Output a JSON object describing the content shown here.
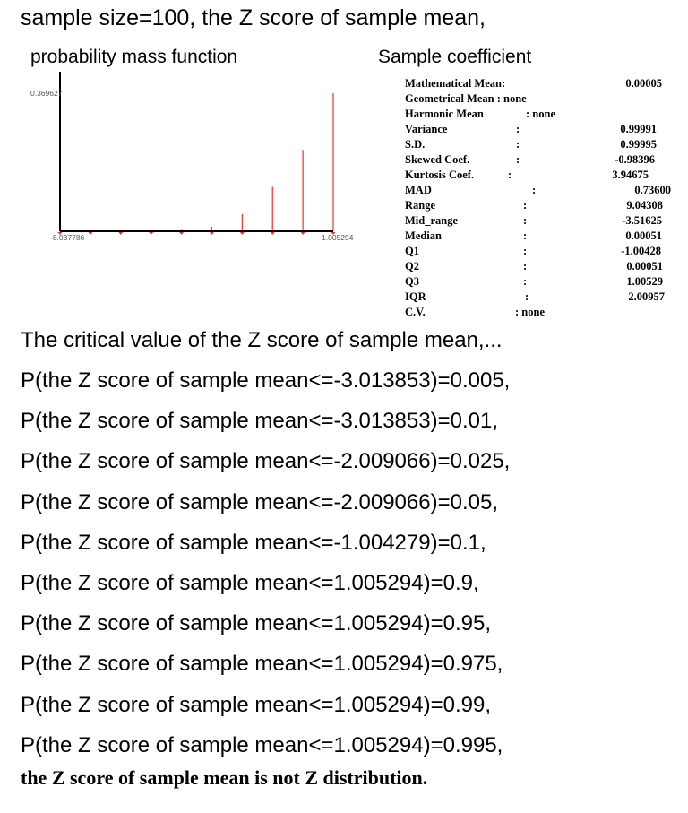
{
  "header": {
    "title": "sample size=100, the Z score of sample mean,",
    "pmf_title": "probability mass function",
    "coef_title": "Sample coefficient"
  },
  "chart_data": {
    "type": "bar",
    "title": "probability mass function",
    "y_tick_label": "0.369627",
    "x_min_label": "-8.037786",
    "x_max_label": "1.005294",
    "xlim": [
      -8.037786,
      1.005294
    ],
    "ylim": [
      0,
      0.369627
    ],
    "bar_color": "#e8332a",
    "axis_color": "#000000",
    "points": [
      {
        "x": -8.037786,
        "y": 0.0
      },
      {
        "x": -7.033,
        "y": 0.0
      },
      {
        "x": -6.028,
        "y": 0.0
      },
      {
        "x": -5.023,
        "y": 0.001
      },
      {
        "x": -4.018,
        "y": 0.004
      },
      {
        "x": -3.014,
        "y": 0.012
      },
      {
        "x": -2.009,
        "y": 0.046
      },
      {
        "x": -1.004,
        "y": 0.119
      },
      {
        "x": 0.0005,
        "y": 0.218
      },
      {
        "x": 1.005294,
        "y": 0.369627
      }
    ]
  },
  "stats": [
    {
      "label": "Mathematical Mean:",
      "colon": "",
      "value": "0.00005"
    },
    {
      "label": "Geometrical Mean : none",
      "colon": "",
      "value": ""
    },
    {
      "label": "Harmonic Mean",
      "colon": ": none",
      "value": ""
    },
    {
      "label": "Variance",
      "colon": ":",
      "value": "0.99991"
    },
    {
      "label": "S.D.",
      "colon": ":",
      "value": "0.99995"
    },
    {
      "label": "Skewed Coef.",
      "colon": ":",
      "value": "-0.98396"
    },
    {
      "label": "Kurtosis Coef.",
      "colon": ":",
      "value": "3.94675"
    },
    {
      "label": "MAD",
      "colon": ":",
      "value": "0.73600"
    },
    {
      "label": "Range",
      "colon": ":",
      "value": "9.04308"
    },
    {
      "label": "Mid_range",
      "colon": ":",
      "value": "-3.51625"
    },
    {
      "label": "Median",
      "colon": ":",
      "value": "0.00051"
    },
    {
      "label": "Q1",
      "colon": ":",
      "value": "-1.00428"
    },
    {
      "label": "Q2",
      "colon": ":",
      "value": "0.00051"
    },
    {
      "label": "Q3",
      "colon": ":",
      "value": "1.00529"
    },
    {
      "label": "IQR",
      "colon": ":",
      "value": "2.00957"
    },
    {
      "label": "C.V.",
      "colon": ": none",
      "value": ""
    }
  ],
  "critical_heading": "The critical value of the Z score of sample mean,...",
  "probabilities": [
    "P(the Z score of sample mean<=-3.013853)=0.005,",
    "P(the Z score of sample mean<=-3.013853)=0.01,",
    "P(the Z score of sample mean<=-2.009066)=0.025,",
    "P(the Z score of sample mean<=-2.009066)=0.05,",
    "P(the Z score of sample mean<=-1.004279)=0.1,",
    "P(the Z score of sample mean<=1.005294)=0.9,",
    "P(the Z score of sample mean<=1.005294)=0.95,",
    "P(the Z score of sample mean<=1.005294)=0.975,",
    "P(the Z score of sample mean<=1.005294)=0.99,",
    "P(the Z score of sample mean<=1.005294)=0.995,"
  ],
  "conclusion": "the Z score of sample mean is not Z distribution."
}
